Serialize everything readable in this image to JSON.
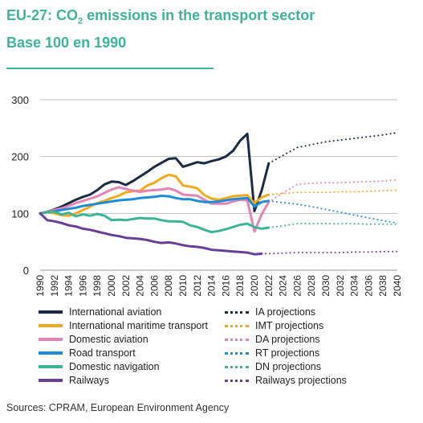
{
  "title": {
    "line1_prefix": "EU-27: CO",
    "line1_sub": "2",
    "line1_suffix": " emissions in the transport sector",
    "line2": "Base 100 en 1990"
  },
  "source": "Sources: CPRAM, European Environment Agency",
  "chart_data": {
    "type": "line",
    "title": "EU-27: CO2 emissions in the transport sector",
    "subtitle": "Base 100 en 1990",
    "ylim": [
      0,
      300
    ],
    "yticks": [
      0,
      100,
      200,
      300
    ],
    "xlim": [
      1990,
      2040
    ],
    "xticks": [
      1990,
      1992,
      1994,
      1996,
      1998,
      2000,
      2002,
      2004,
      2006,
      2008,
      2010,
      2012,
      2014,
      2016,
      2018,
      2020,
      2022,
      2024,
      2026,
      2028,
      2030,
      2032,
      2034,
      2036,
      2038,
      2040
    ],
    "grid": "horizontal",
    "legend_position": "bottom",
    "series": [
      {
        "name": "International aviation",
        "color": "#1b2a44",
        "style": "solid",
        "x": [
          1990,
          1991,
          1992,
          1993,
          1994,
          1995,
          1996,
          1997,
          1998,
          1999,
          2000,
          2001,
          2002,
          2003,
          2004,
          2005,
          2006,
          2007,
          2008,
          2009,
          2010,
          2011,
          2012,
          2013,
          2014,
          2015,
          2016,
          2017,
          2018,
          2019,
          2020,
          2021,
          2022
        ],
        "y": [
          100,
          103,
          107,
          112,
          118,
          124,
          129,
          133,
          141,
          151,
          156,
          155,
          150,
          157,
          165,
          173,
          182,
          189,
          196,
          197,
          182,
          186,
          190,
          188,
          192,
          195,
          200,
          210,
          228,
          240,
          104,
          140,
          188
        ]
      },
      {
        "name": "International maritime transport",
        "color": "#f2a91b",
        "style": "solid",
        "x": [
          1990,
          1991,
          1992,
          1993,
          1994,
          1995,
          1996,
          1997,
          1998,
          1999,
          2000,
          2001,
          2002,
          2003,
          2004,
          2005,
          2006,
          2007,
          2008,
          2009,
          2010,
          2011,
          2012,
          2013,
          2014,
          2015,
          2016,
          2017,
          2018,
          2019,
          2020,
          2021,
          2022
        ],
        "y": [
          100,
          102,
          100,
          97,
          96,
          100,
          106,
          112,
          118,
          122,
          127,
          131,
          137,
          139,
          140,
          149,
          154,
          162,
          168,
          165,
          149,
          147,
          144,
          132,
          126,
          124,
          127,
          130,
          131,
          132,
          118,
          128,
          133
        ]
      },
      {
        "name": "Domestic aviation",
        "color": "#e683b5",
        "style": "solid",
        "x": [
          1990,
          1991,
          1992,
          1993,
          1994,
          1995,
          1996,
          1997,
          1998,
          1999,
          2000,
          2001,
          2002,
          2003,
          2004,
          2005,
          2006,
          2007,
          2008,
          2009,
          2010,
          2011,
          2012,
          2013,
          2014,
          2015,
          2016,
          2017,
          2018,
          2019,
          2020,
          2021,
          2022
        ],
        "y": [
          100,
          103,
          106,
          109,
          113,
          118,
          122,
          126,
          130,
          136,
          142,
          146,
          143,
          140,
          138,
          140,
          141,
          142,
          144,
          140,
          133,
          132,
          131,
          124,
          117,
          117,
          117,
          121,
          124,
          123,
          68,
          98,
          120
        ]
      },
      {
        "name": "Road transport",
        "color": "#1a8cd8",
        "style": "solid",
        "x": [
          1990,
          1991,
          1992,
          1993,
          1994,
          1995,
          1996,
          1997,
          1998,
          1999,
          2000,
          2001,
          2002,
          2003,
          2004,
          2005,
          2006,
          2007,
          2008,
          2009,
          2010,
          2011,
          2012,
          2013,
          2014,
          2015,
          2016,
          2017,
          2018,
          2019,
          2020,
          2021,
          2022
        ],
        "y": [
          100,
          102,
          104,
          106,
          108,
          110,
          113,
          115,
          117,
          119,
          121,
          123,
          124,
          125,
          127,
          128,
          129,
          131,
          130,
          127,
          125,
          125,
          122,
          120,
          120,
          121,
          123,
          125,
          126,
          127,
          112,
          120,
          122
        ]
      },
      {
        "name": "Domestic navigation",
        "color": "#3cb497",
        "style": "solid",
        "x": [
          1990,
          1991,
          1992,
          1993,
          1994,
          1995,
          1996,
          1997,
          1998,
          1999,
          2000,
          2001,
          2002,
          2003,
          2004,
          2005,
          2006,
          2007,
          2008,
          2009,
          2010,
          2011,
          2012,
          2013,
          2014,
          2015,
          2016,
          2017,
          2018,
          2019,
          2020,
          2021,
          2022
        ],
        "y": [
          100,
          102,
          103,
          98,
          101,
          95,
          98,
          96,
          99,
          96,
          88,
          89,
          88,
          90,
          92,
          91,
          91,
          88,
          86,
          86,
          85,
          79,
          76,
          71,
          67,
          69,
          72,
          76,
          80,
          82,
          76,
          73,
          75
        ]
      },
      {
        "name": "Railways",
        "color": "#6a3d96",
        "style": "solid",
        "x": [
          1990,
          1991,
          1992,
          1993,
          1994,
          1995,
          1996,
          1997,
          1998,
          1999,
          2000,
          2001,
          2002,
          2003,
          2004,
          2005,
          2006,
          2007,
          2008,
          2009,
          2010,
          2011,
          2012,
          2013,
          2014,
          2015,
          2016,
          2017,
          2018,
          2019,
          2020,
          2021
        ],
        "y": [
          100,
          88,
          86,
          83,
          79,
          77,
          73,
          71,
          68,
          65,
          62,
          60,
          57,
          56,
          55,
          53,
          50,
          48,
          49,
          47,
          44,
          42,
          41,
          39,
          36,
          35,
          34,
          33,
          32,
          31,
          28,
          29
        ]
      },
      {
        "name": "IA projections",
        "color": "#1b2a44",
        "style": "dotted",
        "x": [
          2022,
          2024,
          2026,
          2028,
          2030,
          2032,
          2034,
          2036,
          2038,
          2040
        ],
        "y": [
          188,
          202,
          216,
          221,
          226,
          229,
          232,
          235,
          238,
          242
        ]
      },
      {
        "name": "IMT projections",
        "color": "#f2a91b",
        "style": "dotted",
        "x": [
          2022,
          2024,
          2026,
          2028,
          2030,
          2032,
          2034,
          2036,
          2038,
          2040
        ],
        "y": [
          133,
          135,
          137,
          137,
          137,
          138,
          138,
          139,
          140,
          141
        ]
      },
      {
        "name": "DA projections",
        "color": "#e683b5",
        "style": "dotted",
        "x": [
          2022,
          2024,
          2026,
          2028,
          2030,
          2032,
          2034,
          2036,
          2038,
          2040
        ],
        "y": [
          120,
          136,
          151,
          153,
          154,
          154,
          155,
          156,
          157,
          159
        ]
      },
      {
        "name": "RT projections",
        "color": "#1a8cd8",
        "style": "dotted",
        "x": [
          2022,
          2024,
          2026,
          2028,
          2030,
          2032,
          2034,
          2036,
          2038,
          2040
        ],
        "y": [
          122,
          119,
          116,
          112,
          107,
          102,
          97,
          92,
          87,
          83
        ]
      },
      {
        "name": "DN projections",
        "color": "#3cb497",
        "style": "dotted",
        "x": [
          2022,
          2024,
          2026,
          2028,
          2030,
          2032,
          2034,
          2036,
          2038,
          2040
        ],
        "y": [
          75,
          78,
          82,
          82,
          82,
          82,
          82,
          81,
          81,
          81
        ]
      },
      {
        "name": "Railways projections",
        "color": "#6a3d96",
        "style": "dotted",
        "x": [
          2021,
          2024,
          2026,
          2028,
          2030,
          2032,
          2034,
          2036,
          2038,
          2040
        ],
        "y": [
          29,
          30,
          31,
          31,
          31,
          31,
          32,
          32,
          33,
          33
        ]
      }
    ]
  }
}
